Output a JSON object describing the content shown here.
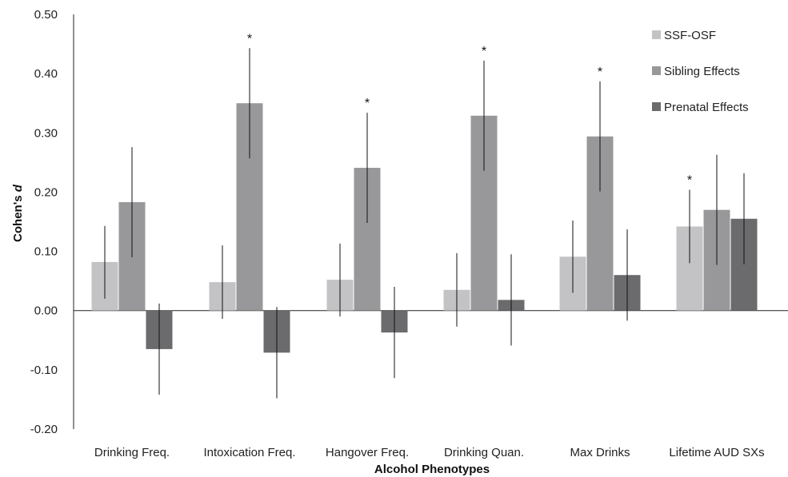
{
  "chart_data": {
    "type": "bar",
    "xlabel": "Alcohol Phenotypes",
    "ylabel_prefix": "Cohen's ",
    "ylabel_var": "d",
    "ylim": [
      -0.2,
      0.5
    ],
    "yticks": [
      "-0.20",
      "-0.10",
      "0.00",
      "0.10",
      "0.20",
      "0.30",
      "0.40",
      "0.50"
    ],
    "ytick_values": [
      -0.2,
      -0.1,
      0.0,
      0.1,
      0.2,
      0.3,
      0.4,
      0.5
    ],
    "legend_position": "top-right",
    "categories": [
      "Drinking Freq.",
      "Intoxication Freq.",
      "Hangover Freq.",
      "Drinking Quan.",
      "Max Drinks",
      "Lifetime AUD SXs"
    ],
    "series": [
      {
        "name": "SSF-OSF",
        "color": "#c3c3c5",
        "values": [
          0.082,
          0.048,
          0.052,
          0.035,
          0.091,
          0.142
        ],
        "err_low": [
          0.02,
          -0.014,
          -0.01,
          -0.027,
          0.03,
          0.08
        ],
        "err_high": [
          0.143,
          0.11,
          0.113,
          0.097,
          0.152,
          0.204
        ],
        "significant": [
          false,
          false,
          false,
          false,
          false,
          true
        ]
      },
      {
        "name": "Sibling Effects",
        "color": "#98989b",
        "values": [
          0.183,
          0.35,
          0.241,
          0.329,
          0.294,
          0.17
        ],
        "err_low": [
          0.09,
          0.257,
          0.148,
          0.236,
          0.201,
          0.077
        ],
        "err_high": [
          0.276,
          0.443,
          0.334,
          0.422,
          0.387,
          0.263
        ],
        "significant": [
          false,
          true,
          true,
          true,
          true,
          false
        ]
      },
      {
        "name": "Prenatal Effects",
        "color": "#6b6b6e",
        "values": [
          -0.065,
          -0.071,
          -0.037,
          0.018,
          0.06,
          0.155
        ],
        "err_low": [
          -0.142,
          -0.148,
          -0.114,
          -0.059,
          -0.017,
          0.078
        ],
        "err_high": [
          0.012,
          0.006,
          0.04,
          0.095,
          0.137,
          0.232
        ],
        "significant": [
          false,
          false,
          false,
          false,
          false,
          false
        ]
      }
    ],
    "significance_marker": "*"
  }
}
